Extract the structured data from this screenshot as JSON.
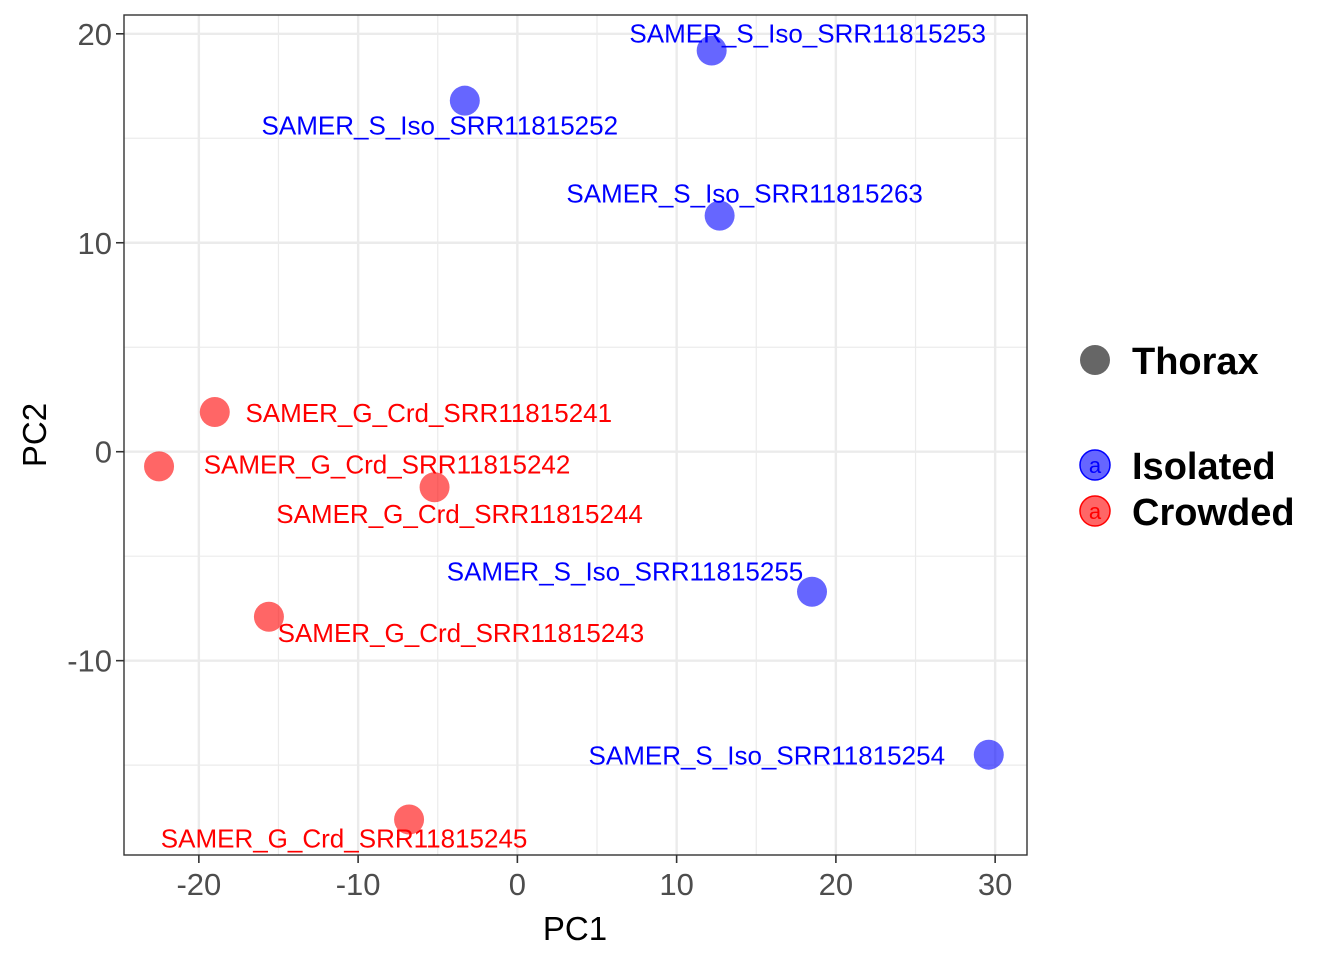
{
  "chart_data": {
    "type": "scatter",
    "xlabel": "PC1",
    "ylabel": "PC2",
    "xlim": [
      -24.7,
      32.0
    ],
    "ylim": [
      -19.3,
      20.9
    ],
    "xticks": [
      -20,
      -10,
      0,
      10,
      20,
      30
    ],
    "yticks": [
      -10,
      0,
      10,
      20
    ],
    "x_tick_labels": [
      "-20",
      "-10",
      "0",
      "10",
      "20",
      "30"
    ],
    "y_tick_labels": [
      "-10",
      "0",
      "10",
      "20"
    ],
    "grid": true,
    "legend_position": "right",
    "legend": {
      "shape_entries": [
        {
          "label": "Thorax",
          "color": "#666666"
        }
      ],
      "color_entries": [
        {
          "label": "Isolated",
          "color": "#0000FF",
          "key_text": "a"
        },
        {
          "label": "Crowded",
          "color": "#FF0000",
          "key_text": "a"
        }
      ]
    },
    "series": [
      {
        "name": "Isolated",
        "color": "#0000FF",
        "points": [
          {
            "x": 12.2,
            "y": 19.2,
            "label": "SAMER_S_Iso_SRR11815253"
          },
          {
            "x": -3.3,
            "y": 16.8,
            "label": "SAMER_S_Iso_SRR11815252"
          },
          {
            "x": 12.7,
            "y": 11.3,
            "label": "SAMER_S_Iso_SRR11815263"
          },
          {
            "x": 18.5,
            "y": -6.7,
            "label": "SAMER_S_Iso_SRR11815255"
          },
          {
            "x": 29.6,
            "y": -14.5,
            "label": "SAMER_S_Iso_SRR11815254"
          }
        ]
      },
      {
        "name": "Crowded",
        "color": "#FF0000",
        "points": [
          {
            "x": -19.0,
            "y": 1.9,
            "label": "SAMER_G_Crd_SRR11815241"
          },
          {
            "x": -22.5,
            "y": -0.7,
            "label": "SAMER_G_Crd_SRR11815242"
          },
          {
            "x": -5.2,
            "y": -1.7,
            "label": "SAMER_G_Crd_SRR11815244"
          },
          {
            "x": -15.6,
            "y": -7.9,
            "label": "SAMER_G_Crd_SRR11815243"
          },
          {
            "x": -6.8,
            "y": -17.6,
            "label": "SAMER_G_Crd_SRR11815245"
          }
        ]
      }
    ]
  }
}
